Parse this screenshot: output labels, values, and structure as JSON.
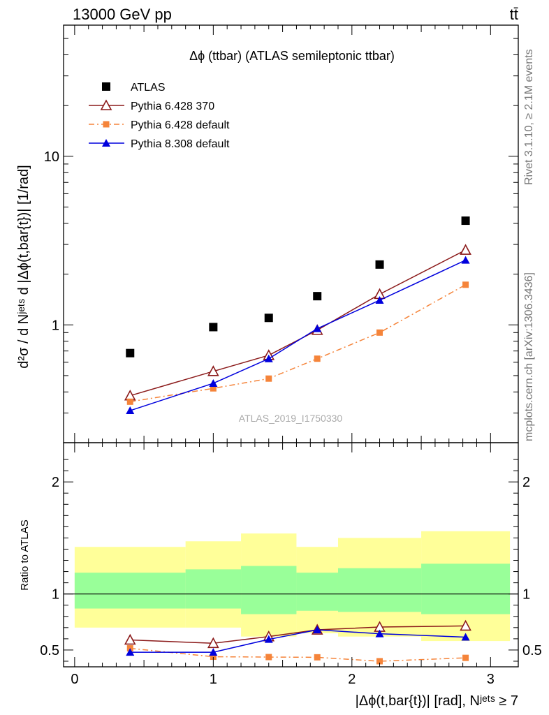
{
  "header": {
    "left": "13000 GeV pp",
    "right": "tt̄"
  },
  "side_labels": {
    "rivet": "Rivet 3.1.10, ≥ 2.1M events",
    "mcplots": "mcplots.cern.ch [arXiv:1306.3436]"
  },
  "chart_data": [
    {
      "type": "scatter",
      "title": "Δϕ (ttbar) (ATLAS semileptonic ttbar)",
      "watermark": "ATLAS_2019_I1750330",
      "ylabel": "d²σ / d Nʲᵉᵗˢ d |Δϕ(t,bar{t})| [1/rad]",
      "yscale": "log",
      "ylim": [
        0.2,
        60
      ],
      "xlim": [
        -0.08,
        3.2
      ],
      "y_ticks": [
        "1",
        "10"
      ],
      "legend_position": "top-left",
      "x": [
        0.4,
        1.0,
        1.4,
        1.75,
        2.2,
        2.82
      ],
      "x_bin_edges": [
        0.0,
        0.8,
        1.2,
        1.6,
        1.9,
        2.5,
        3.14
      ],
      "series": [
        {
          "name": "ATLAS",
          "values": [
            0.68,
            0.97,
            1.1,
            1.48,
            2.28,
            4.15
          ],
          "color": "#000000",
          "marker": "square"
        },
        {
          "name": "Pythia 6.428 370",
          "values": [
            0.38,
            0.53,
            0.66,
            0.93,
            1.52,
            2.78
          ],
          "color": "#8b1a1a",
          "marker": "open-triangle",
          "line": "solid"
        },
        {
          "name": "Pythia 6.428 default",
          "values": [
            0.35,
            0.42,
            0.48,
            0.63,
            0.9,
            1.73
          ],
          "color": "#f5843a",
          "marker": "small-square",
          "line": "dash-dot"
        },
        {
          "name": "Pythia 8.308 default",
          "values": [
            0.31,
            0.45,
            0.63,
            0.95,
            1.4,
            2.42
          ],
          "color": "#0000dd",
          "marker": "filled-triangle",
          "line": "solid"
        }
      ]
    },
    {
      "type": "scatter",
      "ylabel": "Ratio to ATLAS",
      "xlabel": "|Δϕ(t,bar{t})| [rad], Nʲᵉᵗˢ ≥ 7",
      "ylim": [
        0.35,
        2.35
      ],
      "xlim": [
        -0.08,
        3.2
      ],
      "x_ticks": [
        "0",
        "1",
        "2",
        "3"
      ],
      "y_ticks": [
        "0.5",
        "1",
        "2"
      ],
      "x": [
        0.4,
        1.0,
        1.4,
        1.75,
        2.2,
        2.82
      ],
      "bands": {
        "edges": [
          0.0,
          0.8,
          1.2,
          1.6,
          1.9,
          2.5,
          3.14
        ],
        "yellow_low": [
          0.7,
          0.7,
          0.62,
          0.65,
          0.62,
          0.58
        ],
        "yellow_high": [
          1.42,
          1.47,
          1.54,
          1.42,
          1.5,
          1.56
        ],
        "green_low": [
          0.87,
          0.87,
          0.82,
          0.85,
          0.84,
          0.82
        ],
        "green_high": [
          1.19,
          1.22,
          1.25,
          1.19,
          1.23,
          1.27
        ],
        "yellow_color": "#ffff99",
        "green_color": "#99ff99"
      },
      "series": [
        {
          "name": "Pythia 6.428 370",
          "values": [
            0.59,
            0.56,
            0.62,
            0.68,
            0.705,
            0.715
          ],
          "color": "#8b1a1a",
          "marker": "open-triangle",
          "line": "solid"
        },
        {
          "name": "Pythia 6.428 default",
          "values": [
            0.515,
            0.44,
            0.437,
            0.435,
            0.4,
            0.43
          ],
          "color": "#f5843a",
          "marker": "small-square",
          "line": "dash-dot"
        },
        {
          "name": "Pythia 8.308 default",
          "values": [
            0.48,
            0.48,
            0.595,
            0.68,
            0.645,
            0.615
          ],
          "color": "#0000dd",
          "marker": "filled-triangle",
          "line": "solid"
        }
      ]
    }
  ]
}
